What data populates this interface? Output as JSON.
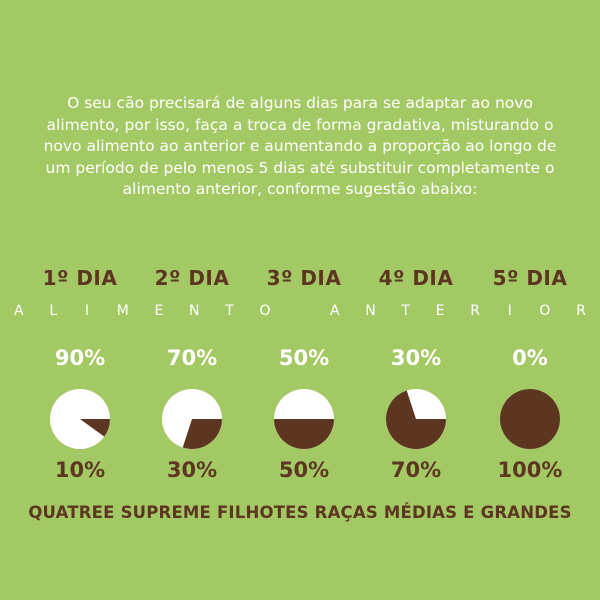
{
  "intro_text": "O seu cão precisará de alguns dias para se adaptar ao novo alimento, por isso, faça a troca de forma gradativa, misturando o novo alimento ao anterior e aumentando a proporção ao longo de um período de pelo menos 5 dias até substituir completamente o alimento anterior, conforme sugestão abaixo:",
  "banner_letters": [
    "A",
    "L",
    "I",
    "M",
    "E",
    "N",
    "T",
    "O",
    "",
    "A",
    "N",
    "T",
    "E",
    "R",
    "I",
    "O",
    "R"
  ],
  "days": [
    {
      "label": "1º DIA",
      "old_pct": "90%",
      "new_pct": "10%",
      "new_fraction": 0.1
    },
    {
      "label": "2º DIA",
      "old_pct": "70%",
      "new_pct": "30%",
      "new_fraction": 0.3
    },
    {
      "label": "3º DIA",
      "old_pct": "50%",
      "new_pct": "50%",
      "new_fraction": 0.5
    },
    {
      "label": "4º DIA",
      "old_pct": "30%",
      "new_pct": "70%",
      "new_fraction": 0.7
    },
    {
      "label": "5º DIA",
      "old_pct": "0%",
      "new_pct": "100%",
      "new_fraction": 1.0
    }
  ],
  "footer_text": "QUATREE SUPREME FILHOTES RAÇAS MÉDIAS E GRANDES",
  "colors": {
    "background": "#a3c964",
    "brown": "#5c3620",
    "white": "#ffffff"
  }
}
